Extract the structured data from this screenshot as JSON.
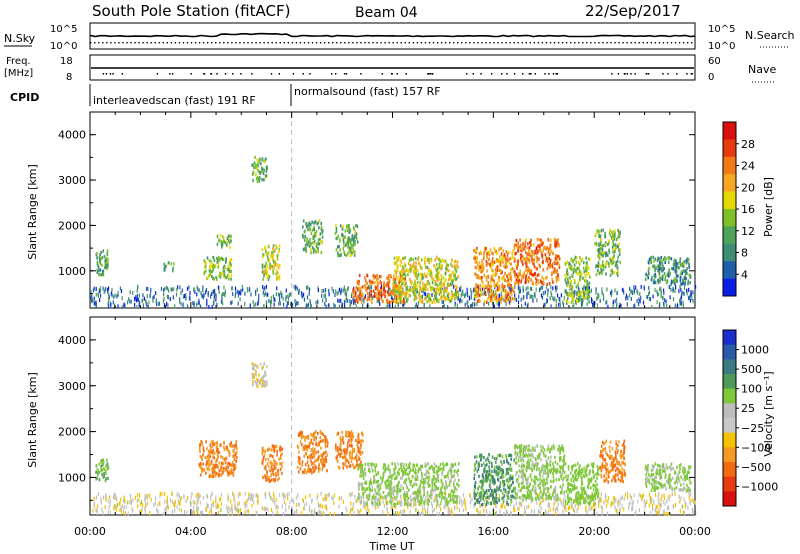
{
  "header": {
    "station": "South Pole Station (fitACF)",
    "beam": "Beam 04",
    "date": "22/Sep/2017"
  },
  "summary": {
    "nsky_label": "N.Sky",
    "nsky_ticks": [
      "10^5",
      "10^0"
    ],
    "nsearch_label": "N.Search",
    "nsearch_ticks": [
      "10^5",
      "10^0"
    ],
    "freq_label": "Freq.",
    "freq_unit": "[MHz]",
    "freq_ticks": [
      "18",
      "8"
    ],
    "nave_label": "Nave",
    "nave_ticks": [
      "60",
      "0"
    ],
    "cpid_label": "CPID",
    "cpid_segments": [
      {
        "name": "interleavedscan (fast) 191 RF",
        "start_hour": 0,
        "end_hour": 8
      },
      {
        "name": "normalsound (fast) 157 RF",
        "start_hour": 8,
        "end_hour": 24
      }
    ]
  },
  "chart_data": [
    {
      "type": "heatmap",
      "title": "",
      "xlabel": "Time UT",
      "ylabel": "Slant Range [km]",
      "xlim": [
        0,
        24
      ],
      "ylim": [
        180,
        4500
      ],
      "x_ticks": [
        "00:00",
        "04:00",
        "08:00",
        "12:00",
        "16:00",
        "20:00",
        "00:00"
      ],
      "y_ticks": [
        1000,
        2000,
        3000,
        4000
      ],
      "colorbar": {
        "label": "Power [dB]",
        "ticks": [
          4,
          8,
          12,
          16,
          20,
          24,
          28
        ],
        "colors": [
          "#0a1ee6",
          "#1f5fa8",
          "#3f8e74",
          "#4fa35a",
          "#7ec02a",
          "#e8d800",
          "#f5a623",
          "#f07a16",
          "#e63b0e",
          "#d9100e"
        ]
      },
      "clusters": [
        {
          "t_start": 0.0,
          "t_end": 24.0,
          "r_min": 200,
          "r_max": 650,
          "value": 6
        },
        {
          "t_start": 0.2,
          "t_end": 0.7,
          "r_min": 900,
          "r_max": 1450,
          "value": 11
        },
        {
          "t_start": 2.9,
          "t_end": 3.3,
          "r_min": 1000,
          "r_max": 1200,
          "value": 11
        },
        {
          "t_start": 4.5,
          "t_end": 5.6,
          "r_min": 800,
          "r_max": 1300,
          "value": 14
        },
        {
          "t_start": 5.0,
          "t_end": 5.6,
          "r_min": 1500,
          "r_max": 1800,
          "value": 12
        },
        {
          "t_start": 6.4,
          "t_end": 7.0,
          "r_min": 2950,
          "r_max": 3500,
          "value": 12
        },
        {
          "t_start": 6.8,
          "t_end": 7.5,
          "r_min": 800,
          "r_max": 1600,
          "value": 16
        },
        {
          "t_start": 8.4,
          "t_end": 9.2,
          "r_min": 1400,
          "r_max": 2100,
          "value": 12
        },
        {
          "t_start": 9.7,
          "t_end": 10.6,
          "r_min": 1300,
          "r_max": 2000,
          "value": 12
        },
        {
          "t_start": 10.4,
          "t_end": 12.5,
          "r_min": 300,
          "r_max": 900,
          "value": 24
        },
        {
          "t_start": 12.0,
          "t_end": 14.6,
          "r_min": 300,
          "r_max": 1300,
          "value": 17
        },
        {
          "t_start": 15.2,
          "t_end": 16.8,
          "r_min": 300,
          "r_max": 1500,
          "value": 22
        },
        {
          "t_start": 16.8,
          "t_end": 18.6,
          "r_min": 700,
          "r_max": 1700,
          "value": 24
        },
        {
          "t_start": 18.8,
          "t_end": 19.8,
          "r_min": 300,
          "r_max": 1300,
          "value": 14
        },
        {
          "t_start": 20.0,
          "t_end": 21.0,
          "r_min": 900,
          "r_max": 1900,
          "value": 13
        },
        {
          "t_start": 22.0,
          "t_end": 23.8,
          "r_min": 700,
          "r_max": 1300,
          "value": 9
        }
      ]
    },
    {
      "type": "heatmap",
      "title": "",
      "xlabel": "Time UT",
      "ylabel": "Slant Range [km]",
      "xlim": [
        0,
        24
      ],
      "ylim": [
        180,
        4500
      ],
      "x_ticks": [
        "00:00",
        "04:00",
        "08:00",
        "12:00",
        "16:00",
        "20:00",
        "00:00"
      ],
      "y_ticks": [
        1000,
        2000,
        3000,
        4000
      ],
      "colorbar": {
        "label": "Velocity [m s⁻¹]",
        "ticks": [
          "1000",
          "500",
          "100",
          "25",
          "−25",
          "−100",
          "−500",
          "−1000"
        ],
        "colors": [
          "#1a2ecc",
          "#2a5aa8",
          "#3a7a80",
          "#4e9a5a",
          "#7fc83a",
          "#bdbdbd",
          "#c8c8c8",
          "#f5c200",
          "#f59a23",
          "#f26a12",
          "#e63b0e",
          "#d9100e"
        ]
      },
      "clusters": [
        {
          "t_start": 0.0,
          "t_end": 24.0,
          "r_min": 200,
          "r_max": 650,
          "value": 10
        },
        {
          "t_start": 0.2,
          "t_end": 0.7,
          "r_min": 900,
          "r_max": 1400,
          "value": 300
        },
        {
          "t_start": 4.3,
          "t_end": 5.8,
          "r_min": 1000,
          "r_max": 1800,
          "value": -300
        },
        {
          "t_start": 6.4,
          "t_end": 7.0,
          "r_min": 2950,
          "r_max": 3500,
          "value": 0
        },
        {
          "t_start": 6.8,
          "t_end": 7.6,
          "r_min": 900,
          "r_max": 1700,
          "value": -300
        },
        {
          "t_start": 8.2,
          "t_end": 9.4,
          "r_min": 1100,
          "r_max": 2000,
          "value": -300
        },
        {
          "t_start": 9.7,
          "t_end": 10.8,
          "r_min": 1200,
          "r_max": 2000,
          "value": -300
        },
        {
          "t_start": 10.6,
          "t_end": 14.6,
          "r_min": 400,
          "r_max": 1300,
          "value": 150
        },
        {
          "t_start": 15.2,
          "t_end": 16.8,
          "r_min": 400,
          "r_max": 1500,
          "value": 400
        },
        {
          "t_start": 16.8,
          "t_end": 18.8,
          "r_min": 500,
          "r_max": 1700,
          "value": 150
        },
        {
          "t_start": 18.8,
          "t_end": 20.2,
          "r_min": 400,
          "r_max": 1300,
          "value": 200
        },
        {
          "t_start": 20.2,
          "t_end": 21.2,
          "r_min": 900,
          "r_max": 1800,
          "value": -300
        },
        {
          "t_start": 22.0,
          "t_end": 23.8,
          "r_min": 700,
          "r_max": 1300,
          "value": 150
        }
      ]
    }
  ]
}
